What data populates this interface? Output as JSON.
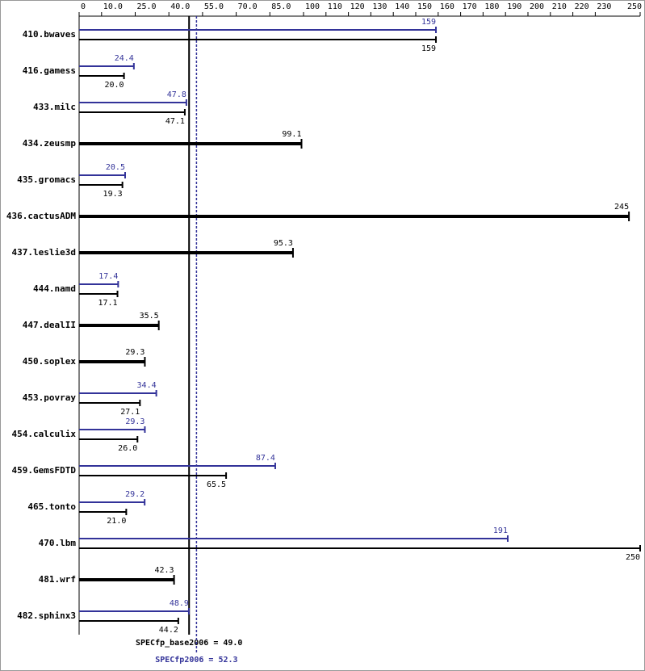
{
  "chart_data": {
    "type": "hbar",
    "categories": [
      "410.bwaves",
      "416.gamess",
      "433.milc",
      "434.zeusmp",
      "435.gromacs",
      "436.cactusADM",
      "437.leslie3d",
      "444.namd",
      "447.dealII",
      "450.soplex",
      "453.povray",
      "454.calculix",
      "459.GemsFDTD",
      "465.tonto",
      "470.lbm",
      "481.wrf",
      "482.sphinx3"
    ],
    "series": [
      {
        "color": "#333399",
        "values": [
          159,
          24.4,
          47.8,
          null,
          20.5,
          null,
          null,
          17.4,
          null,
          null,
          34.4,
          29.3,
          87.4,
          29.2,
          191,
          null,
          48.9
        ]
      },
      {
        "color": "#000000",
        "values": [
          159,
          20.0,
          47.1,
          99.1,
          19.3,
          245,
          95.3,
          17.1,
          35.5,
          29.3,
          27.1,
          26.0,
          65.5,
          21.0,
          250,
          42.3,
          44.2
        ],
        "value_labels": [
          "159",
          "20.0",
          "47.1",
          "99.1",
          "19.3",
          "245",
          "95.3",
          "17.1",
          "35.5",
          "29.3",
          "27.1",
          "26.0",
          "65.5",
          "21.0",
          "250",
          "42.3",
          "44.2"
        ]
      }
    ],
    "xlim": [
      0,
      250
    ],
    "xticks": [
      0,
      {
        "value": 10,
        "label": "10.0"
      },
      {
        "value": 25,
        "label": "25.0"
      },
      {
        "value": 40,
        "label": "40.0"
      },
      {
        "value": 55,
        "label": "55.0"
      },
      {
        "value": 70,
        "label": "70.0"
      },
      {
        "value": 85,
        "label": "85.0"
      },
      100,
      110,
      120,
      130,
      140,
      150,
      160,
      170,
      180,
      190,
      200,
      210,
      220,
      230,
      250
    ],
    "reference_lines": [
      {
        "label": "SPECfp_base2006 = 49.0",
        "value": 49.0,
        "color": "#000000"
      },
      {
        "label": "SPECfp2006 = 52.3",
        "value": 52.3,
        "color": "#333399"
      }
    ]
  }
}
